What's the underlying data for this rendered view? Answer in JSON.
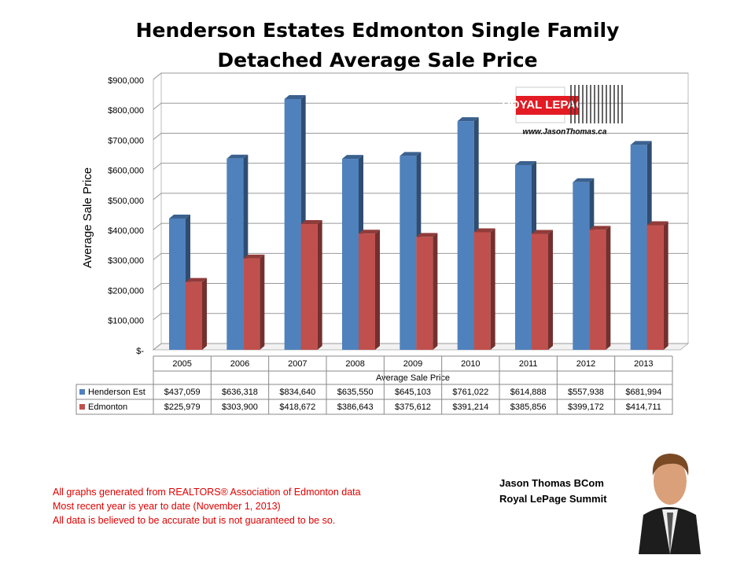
{
  "chart_data": {
    "type": "bar",
    "title": "Henderson Estates Edmonton Single Family Detached Average Sale Price",
    "y_label": "Average Sale Price",
    "x_label": "Average Sale Price",
    "categories": [
      "2005",
      "2006",
      "2007",
      "2008",
      "2009",
      "2010",
      "2011",
      "2012",
      "2013"
    ],
    "series": [
      {
        "name": "Henderson Est",
        "color": "#4f81bd",
        "values": [
          437059,
          636318,
          834640,
          635550,
          645103,
          761022,
          614888,
          557938,
          681994
        ],
        "value_labels": [
          "$437,059",
          "$636,318",
          "$834,640",
          "$635,550",
          "$645,103",
          "$761,022",
          "$614,888",
          "$557,938",
          "$681,994"
        ]
      },
      {
        "name": "Edmonton",
        "color": "#c0504d",
        "values": [
          225979,
          303900,
          418672,
          386643,
          375612,
          391214,
          385856,
          399172,
          414711
        ],
        "value_labels": [
          "$225,979",
          "$303,900",
          "$418,672",
          "$386,643",
          "$375,612",
          "$391,214",
          "$385,856",
          "$399,172",
          "$414,711"
        ]
      }
    ],
    "ylim": [
      0,
      900000
    ],
    "yticks": [
      {
        "value": 0,
        "label": "$-"
      },
      {
        "value": 100000,
        "label": "$100,000"
      },
      {
        "value": 200000,
        "label": "$200,000"
      },
      {
        "value": 300000,
        "label": "$300,000"
      },
      {
        "value": 400000,
        "label": "$400,000"
      },
      {
        "value": 500000,
        "label": "$500,000"
      },
      {
        "value": 600000,
        "label": "$600,000"
      },
      {
        "value": 700000,
        "label": "$700,000"
      },
      {
        "value": 800000,
        "label": "$800,000"
      },
      {
        "value": 900000,
        "label": "$900,000"
      }
    ],
    "grid": true,
    "data_table": true
  },
  "logo": {
    "brand": "ROYAL LEPAGE",
    "url": "www.JasonThomas.ca"
  },
  "footer": {
    "notes": [
      "All graphs generated from REALTORS® Association of Edmonton data",
      "Most recent year is year to date (November 1, 2013)",
      "All data is believed to be accurate but is not guaranteed to be so."
    ],
    "agent_name": "Jason Thomas BCom",
    "agent_company": "Royal LePage Summit"
  }
}
